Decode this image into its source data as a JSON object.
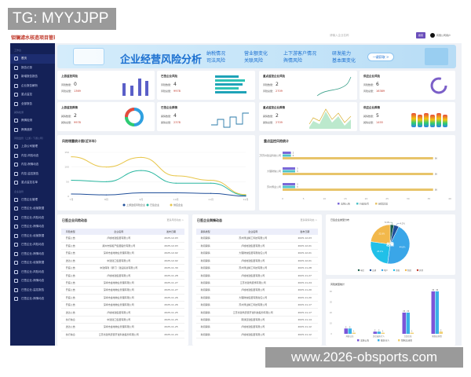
{
  "watermark_top": "TG: MYYJJPP",
  "watermark_bottom": "www.2026-obsports.com",
  "app_title": "钼镧滤水核造项目管理系统",
  "header": {
    "search_placeholder": "请输入企业名称",
    "button": "搜索",
    "user": "有限公司用户"
  },
  "sidebar": {
    "items": [
      {
        "type": "sec",
        "label": "工作台"
      },
      {
        "label": "首页",
        "active": true
      },
      {
        "label": "报告记录"
      },
      {
        "label": "新增报告报告"
      },
      {
        "label": "企业报告解析"
      },
      {
        "label": "重点监控"
      },
      {
        "label": "全部报告"
      },
      {
        "type": "sec",
        "label": "舆情检测"
      },
      {
        "label": "舆情检测"
      },
      {
        "label": "舆情追踪"
      },
      {
        "type": "sec",
        "label": "风险监管（上游 / 下游公司）"
      },
      {
        "label": "上游公司管理"
      },
      {
        "label": "内控-风险动态"
      },
      {
        "label": "内控-舆情动态"
      },
      {
        "label": "内控-监控报告"
      },
      {
        "label": "重点监控名单"
      },
      {
        "type": "sec",
        "label": "企业监管"
      },
      {
        "label": "已签企业管理"
      },
      {
        "label": "已签企业-经营数据"
      },
      {
        "label": "已签企业-风险动态"
      },
      {
        "label": "已签企业-舆情动态"
      },
      {
        "label": "已签企业-经营数据"
      },
      {
        "label": "已签企业-风险动态"
      },
      {
        "label": "已签企业-舆情动态"
      },
      {
        "label": "已签企业-经营数据"
      },
      {
        "label": "已签企业-风险动态"
      },
      {
        "label": "已签企业-舆情动态"
      },
      {
        "label": "已签企业-监控报告"
      },
      {
        "label": "已签企业-舆情动态"
      }
    ]
  },
  "banner": {
    "title": "企业经营风险分析",
    "kw": [
      [
        "纳税情况",
        "司法风险"
      ],
      [
        "营业额变化",
        "关联风险"
      ],
      [
        "上下游客户情况",
        "舆情风险"
      ],
      [
        "研发能力",
        "基本面变化"
      ]
    ],
    "button": "一键获取 >"
  },
  "cards": [
    {
      "title": "上游监控风险",
      "l1": "风险数量：",
      "v1": "0",
      "l2": "风险总量：",
      "v2": "1369"
    },
    {
      "title": "已签企业风险",
      "l1": "风险数量：",
      "v1": "4",
      "l2": "风险总量：",
      "v2": "9978"
    },
    {
      "title": "重点监控企业风险",
      "l1": "风险数量：",
      "v1": "2",
      "l2": "风险总量：",
      "v2": "2709"
    },
    {
      "title": "供应企业风险",
      "l1": "风险数量：",
      "v1": "6",
      "l2": "风险总量：",
      "v2": "16389"
    },
    {
      "title": "上游监控舆情",
      "l1": "舆情数量：",
      "v1": "2",
      "l2": "舆情总量：",
      "v2": "9978"
    },
    {
      "title": "已签企业舆情",
      "l1": "舆情数量：",
      "v1": "4",
      "l2": "舆情总量：",
      "v2": "2378"
    },
    {
      "title": "重点监控企业舆情",
      "l1": "舆情数量：",
      "v1": "2",
      "l2": "舆情总量：",
      "v2": "2709"
    },
    {
      "title": "供应企业舆情",
      "l1": "舆情数量：",
      "v1": "5",
      "l2": "舆情总量：",
      "v2": "1455"
    }
  ],
  "table1": {
    "title": "已签企业风险动态",
    "more": "更多风险动态 >",
    "headers": [
      "风险类型",
      "企业名称",
      "发布日期"
    ],
    "rows": [
      [
        "开庭公告",
        "卢峰地建集团有限公司",
        "2025-12-03"
      ],
      [
        "开庭公告",
        "郑州市恒和产集团股份有限公司",
        "2025-12-03"
      ],
      [
        "开庭公告",
        "深圳市金地物业管理有限公司",
        "2025-12-02"
      ],
      [
        "送达公告",
        "中建建工集团有限公司",
        "2025-12-02"
      ],
      [
        "开庭公告",
        "中建保利（厦门）建设投资有限公司",
        "2025-11-30"
      ],
      [
        "开庭公告",
        "卢峰地建集团有限公司",
        "2025-11-28"
      ],
      [
        "开庭公告",
        "深圳市金地物业管理有限公司",
        "2025-11-27"
      ],
      [
        "开庭公告",
        "深圳市金地物业管理有限公司",
        "2025-11-27"
      ],
      [
        "开庭公告",
        "深圳市金地物业管理有限公司",
        "2025-11-26"
      ],
      [
        "开庭公告",
        "深圳市金地物业管理有限公司",
        "2025-11-26"
      ],
      [
        "送达公告",
        "卢峰地建集团有限公司",
        "2025-11-25"
      ],
      [
        "执行信息",
        "中建建工集团有限公司",
        "2025-11-25"
      ],
      [
        "送达公告",
        "深圳市金地物业管理有限公司",
        "2025-11-25"
      ],
      [
        "执行信息",
        "江苏省建筑安装开发科技股份有限公司",
        "2025-11-24"
      ]
    ]
  },
  "table2": {
    "title": "已签企业舆情动态",
    "more": "更多舆情动态 >",
    "headers": [
      "舆情类型",
      "企业名称",
      "发布日期"
    ],
    "rows": [
      [
        "新闻舆情",
        "苏州博业精工科技有限公司",
        "2025-12-03"
      ],
      [
        "新闻舆情",
        "卢峰地建集团有限公司",
        "2025-12-01"
      ],
      [
        "新闻舆情",
        "大理财信集团有限责任公司",
        "2025-12-01"
      ],
      [
        "新闻舆情",
        "卢峰地建集团有限公司",
        "2025-12-01"
      ],
      [
        "新闻舆情",
        "苏州博业精工科技有限公司",
        "2025-11-28"
      ],
      [
        "新闻舆情",
        "卢峰地建集团有限公司",
        "2025-11-27"
      ],
      [
        "新闻舆情",
        "江苏省建筑装饰有限公司",
        "2025-11-24"
      ],
      [
        "新闻舆情",
        "卢峰地建集团有限公司",
        "2025-11-20"
      ],
      [
        "新闻舆情",
        "大理财信集团有限责任公司",
        "2025-11-20"
      ],
      [
        "新闻舆情",
        "苏州博业精工科技有限公司",
        "2025-11-17"
      ],
      [
        "新闻舆情",
        "江苏省建筑安装开发科技股份有限公司",
        "2025-11-17"
      ],
      [
        "新闻舆情",
        "南通四建集团有限公司",
        "2025-11-14"
      ],
      [
        "新闻舆情",
        "卢峰地建集团有限公司",
        "2025-11-12"
      ],
      [
        "新闻舆情",
        "卢峰地建集团有限公司",
        "2025-11-12"
      ]
    ]
  },
  "chart_data": [
    {
      "id": "line",
      "type": "line",
      "title": "风险增量统计图(近半年)",
      "x": [
        "7月",
        "8月",
        "9月",
        "10月",
        "11月",
        "12月"
      ],
      "ylim": [
        0,
        150
      ],
      "yticks": [
        0,
        50,
        100,
        150
      ],
      "series": [
        {
          "name": "上游监控风险企业",
          "color": "#1f4e99",
          "values": [
            8,
            5,
            12,
            12,
            10,
            1
          ]
        },
        {
          "name": "已签企业",
          "color": "#2ab7a0",
          "values": [
            55,
            50,
            88,
            45,
            45,
            4
          ]
        },
        {
          "name": "供应企业",
          "color": "#e8c64a",
          "values": [
            135,
            100,
            133,
            70,
            55,
            6
          ]
        }
      ]
    },
    {
      "id": "hbar",
      "type": "bar",
      "orientation": "horizontal",
      "title": "重点监控风险统计",
      "categories": [
        "江苏苏州建设科技公司",
        "大理财信公司",
        "苏州博业公司"
      ],
      "xlim": [
        0,
        40
      ],
      "xticks": [
        0,
        5,
        10,
        15,
        20,
        25,
        30,
        35,
        40
      ],
      "series": [
        {
          "name": "法院公告",
          "color": "#7b68d8",
          "values": [
            2,
            3,
            3
          ]
        },
        {
          "name": "行政处罚",
          "color": "#4fc3c8",
          "values": [
            2,
            3,
            3
          ]
        },
        {
          "name": "经营异常",
          "color": "#e8c46a",
          "values": [
            36,
            36,
            36
          ]
        }
      ]
    },
    {
      "id": "pie",
      "type": "pie",
      "title": "已签企业类型分布",
      "labels": [
        "电信",
        "交通",
        "地产",
        "金融",
        "制造",
        "其他"
      ],
      "colors": [
        "#1a5e4a",
        "#1f4e99",
        "#3aa6e8",
        "#20c0e8",
        "#f2b84b",
        "#c0392b"
      ],
      "values": [
        3.1,
        4.2,
        44.8,
        25.1,
        22.8,
        0
      ],
      "center_label": "总量"
    },
    {
      "id": "vbar",
      "type": "bar",
      "title": "风险类型统计",
      "categories": [
        "开庭公告",
        "失信被执行人",
        "立案信息",
        "限制高消费"
      ],
      "ylim": [
        0,
        40
      ],
      "yticks": [
        0,
        10,
        20,
        30,
        40
      ],
      "series": [
        {
          "name": "法院公告",
          "color": "#7b55d8",
          "values": [
            5,
            2,
            20,
            40
          ]
        },
        {
          "name": "被执行人",
          "color": "#3ab0e8",
          "values": [
            5,
            2,
            20,
            40
          ]
        },
        {
          "name": "限制高消费",
          "color": "#f0d070",
          "values": [
            1,
            1,
            1,
            2
          ]
        }
      ]
    }
  ]
}
